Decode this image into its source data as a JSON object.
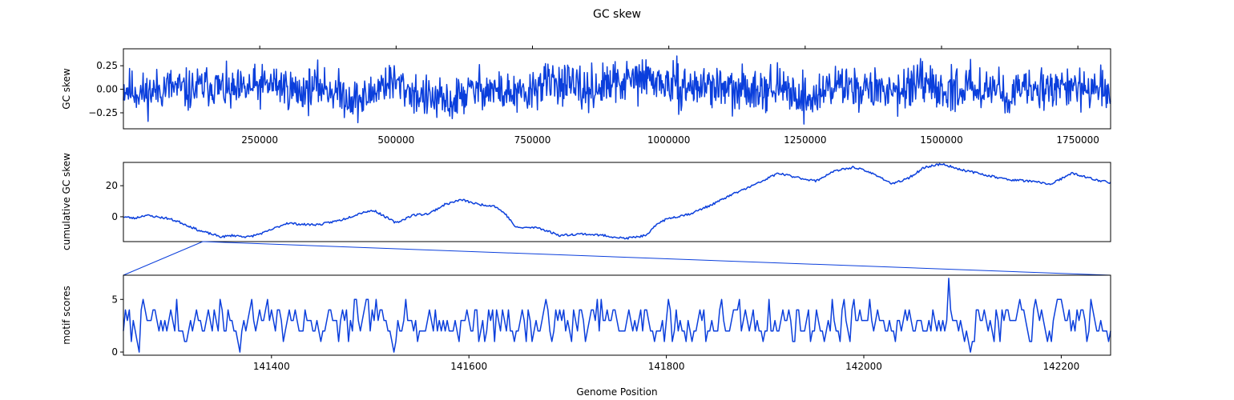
{
  "figure": {
    "title": "GC skew",
    "xlabel": "Genome Position"
  },
  "colors": {
    "line": "#0b3fdc",
    "zoom": "#0b3fdc"
  },
  "chart_data": [
    {
      "type": "line",
      "ylabel": "GC skew",
      "xlim": [
        0,
        1810000
      ],
      "ylim": [
        -0.42,
        0.43
      ],
      "xticks": [
        250000,
        500000,
        750000,
        1000000,
        1250000,
        1500000,
        1750000
      ],
      "xtick_labels": [
        "250000",
        "500000",
        "750000",
        "1000000",
        "1250000",
        "1500000",
        "1750000"
      ],
      "xticks_position": "top-of-axis labels below",
      "yticks": [
        -0.25,
        0,
        0.25
      ],
      "ytick_labels": [
        "−0.25",
        "0.00",
        "0.25"
      ],
      "series": [
        {
          "x": [
            0,
            40000,
            80000,
            120000,
            160000,
            200000,
            240000,
            280000,
            320000,
            360000,
            400000,
            420000,
            440000,
            480000,
            500000,
            540000,
            560000,
            600000,
            620000,
            660000,
            700000,
            740000,
            760000,
            800000,
            840000,
            880000,
            920000,
            960000,
            1000000,
            1040000,
            1080000,
            1120000,
            1160000,
            1200000,
            1240000,
            1260000,
            1300000,
            1340000,
            1380000,
            1420000,
            1460000,
            1500000,
            1540000,
            1580000,
            1620000,
            1660000,
            1700000,
            1740000,
            1780000,
            1810000
          ],
          "values": [
            0.02,
            -0.05,
            0.03,
            -0.02,
            0.05,
            -0.04,
            0.02,
            0.06,
            -0.03,
            0.04,
            -0.05,
            -0.1,
            -0.12,
            0.08,
            0.06,
            -0.06,
            -0.1,
            -0.15,
            -0.06,
            0.02,
            -0.04,
            -0.08,
            0.05,
            0.08,
            -0.02,
            0.03,
            0.08,
            0.12,
            0.04,
            0.02,
            0.05,
            -0.04,
            0.03,
            0.01,
            -0.06,
            -0.12,
            0.05,
            0.03,
            -0.02,
            0.01,
            0.04,
            -0.03,
            0.02,
            0.04,
            -0.05,
            -0.02,
            0.05,
            0.02,
            -0.03,
            0.0
          ]
        }
      ]
    },
    {
      "type": "line",
      "ylabel": "cumulative GC skew",
      "xlim": [
        0,
        1810000
      ],
      "ylim": [
        -16,
        35
      ],
      "yticks": [
        0,
        20
      ],
      "ytick_labels": [
        "0",
        "20"
      ],
      "series": [
        {
          "x": [
            0,
            20000,
            40000,
            60000,
            80000,
            100000,
            120000,
            140000,
            160000,
            180000,
            200000,
            230000,
            260000,
            300000,
            330000,
            360000,
            400000,
            440000,
            460000,
            500000,
            530000,
            560000,
            590000,
            620000,
            650000,
            680000,
            700000,
            720000,
            760000,
            800000,
            840000,
            880000,
            920000,
            960000,
            980000,
            1000000,
            1040000,
            1080000,
            1120000,
            1160000,
            1200000,
            1240000,
            1270000,
            1300000,
            1340000,
            1380000,
            1410000,
            1440000,
            1470000,
            1500000,
            1540000,
            1580000,
            1620000,
            1660000,
            1700000,
            1740000,
            1780000,
            1810000
          ],
          "values": [
            0,
            -1,
            1,
            0,
            -1,
            -3,
            -6,
            -9,
            -11,
            -13,
            -12,
            -13,
            -10,
            -4,
            -5,
            -5,
            -2,
            3,
            4,
            -4,
            1,
            2,
            8,
            11,
            8,
            7,
            2,
            -7,
            -7,
            -12,
            -11,
            -12,
            -14,
            -12,
            -4,
            -1,
            2,
            8,
            15,
            21,
            28,
            25,
            23,
            29,
            32,
            27,
            21,
            25,
            32,
            34,
            30,
            27,
            24,
            23,
            21,
            28,
            24,
            22
          ]
        }
      ]
    },
    {
      "type": "line",
      "ylabel": "motif scores",
      "xlim": [
        141250,
        142250
      ],
      "ylim": [
        -0.3,
        7.3
      ],
      "xticks": [
        141400,
        141600,
        141800,
        142000,
        142200
      ],
      "xtick_labels": [
        "141400",
        "141600",
        "141800",
        "142000",
        "142200"
      ],
      "yticks": [
        0,
        5
      ],
      "ytick_labels": [
        "0",
        "5"
      ],
      "series": [
        {
          "x_start": 141250,
          "x_step": 2,
          "n": 501,
          "seed": 7,
          "value_range": [
            0,
            7
          ],
          "peak": {
            "x": 142086,
            "value": 7
          }
        }
      ]
    }
  ]
}
